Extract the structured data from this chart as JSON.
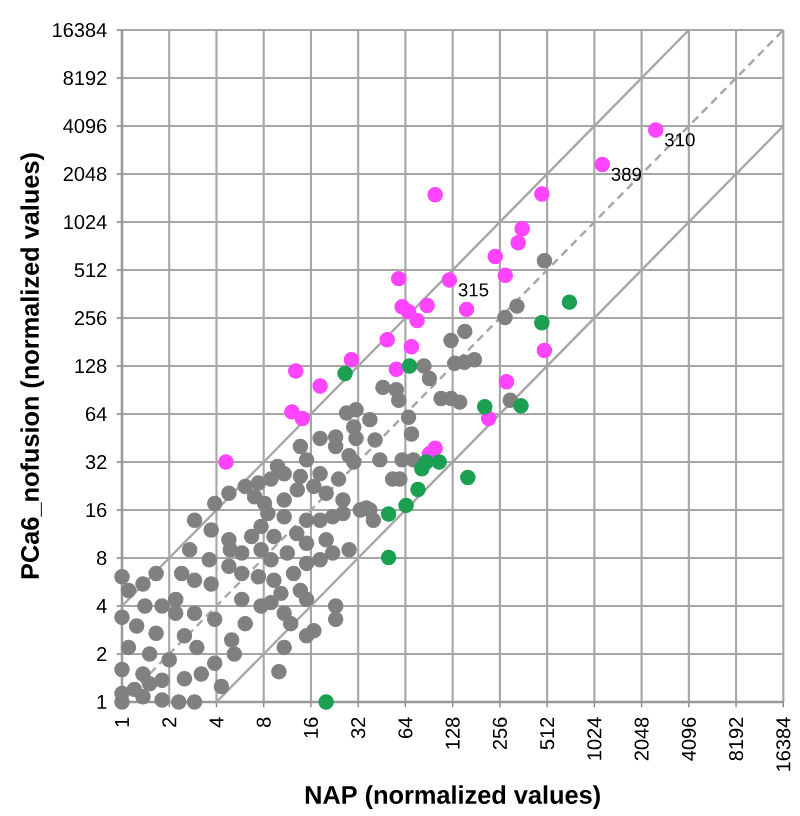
{
  "chart_data": {
    "type": "scatter",
    "xlabel": "NAP (normalized values)",
    "ylabel": "PCa6_nofusion (normalized values)",
    "log": "xy",
    "grid": true,
    "marker": "circle",
    "xlim": [
      1,
      16384
    ],
    "ylim": [
      1,
      16384
    ],
    "xticks": [
      1,
      2,
      4,
      8,
      16,
      32,
      64,
      128,
      256,
      512,
      1024,
      2048,
      4096,
      8192,
      16384
    ],
    "yticks": [
      1,
      2,
      4,
      8,
      16,
      32,
      64,
      128,
      256,
      512,
      1024,
      2048,
      4096,
      8192,
      16384
    ],
    "annotations": [
      {
        "text": "310",
        "x": 2520,
        "y": 3870
      },
      {
        "text": "389",
        "x": 1150,
        "y": 2350
      },
      {
        "text": "315",
        "x": 122,
        "y": 443
      }
    ],
    "series": [
      {
        "type": "line",
        "color": "#a6a6a6",
        "marker": "none",
        "line_style": "solid",
        "x": [
          1,
          4096
        ],
        "values": [
          4,
          16384
        ]
      },
      {
        "type": "line",
        "color": "#a6a6a6",
        "marker": "none",
        "line_style": "dashed",
        "x": [
          1,
          16384
        ],
        "values": [
          1,
          16384
        ]
      },
      {
        "type": "line",
        "color": "#a6a6a6",
        "marker": "none",
        "line_style": "solid",
        "x": [
          4,
          16384
        ],
        "values": [
          1,
          4096
        ]
      },
      {
        "color": "#808080",
        "x": [
          492,
          329,
          276,
          153,
          125,
          176,
          152,
          132,
          84,
          91,
          46,
          56,
          108,
          125,
          298,
          142,
          31,
          27,
          30,
          13.7,
          18.3,
          23,
          31,
          41,
          70,
          61,
          72,
          30,
          53,
          59,
          9.8,
          10.8,
          8.9,
          7.4,
          6.1,
          13.7,
          16.7,
          13.1,
          10.8,
          25.6,
          33,
          38,
          22,
          18.3,
          15,
          13,
          8.5,
          7.7,
          6.7,
          2.9,
          3.7,
          4.8,
          4.9,
          2.7,
          2.4,
          2.9,
          3.7,
          5.8,
          7.4,
          9.3,
          12.4,
          15,
          18.3,
          22,
          28,
          13.7,
          10.3,
          8.9,
          15,
          23,
          23,
          16.7,
          15,
          11.9,
          10.8,
          10,
          6.1,
          5.0,
          5.2,
          3.9,
          3.2,
          4.3,
          2.3,
          2.9,
          1.0,
          1.1,
          1.36,
          1.65,
          1.8,
          2.2,
          1.0,
          1.24,
          1.65,
          1.1,
          1.5,
          2.0,
          1.0,
          1.36,
          1.8,
          1.0,
          1.36,
          1.8,
          1,
          7.0,
          8.1,
          9.3,
          11.3,
          15,
          7.7,
          8.9,
          5.8,
          4.8,
          3.6,
          2.2,
          2.9,
          3.9,
          7.7,
          5.8,
          10.8,
          20,
          25.6,
          36,
          20,
          18.3,
          15,
          24,
          40,
          28,
          44,
          58,
          67,
          38,
          23,
          10.8,
          4.8,
          3.9,
          1.2,
          1.5,
          2.5,
          3.0,
          2.5,
          1.4
        ],
        "values": [
          585,
          304,
          258,
          211,
          185,
          140,
          135,
          133,
          128,
          107,
          94,
          91,
          80,
          80,
          78,
          76,
          68,
          65,
          53,
          40,
          45,
          46,
          45,
          44,
          48,
          33,
          33,
          32,
          25,
          25,
          30,
          27,
          25,
          23.6,
          22.5,
          26,
          22.5,
          21.4,
          18.5,
          18.5,
          16,
          16,
          14.5,
          13.8,
          13.8,
          11.4,
          15.2,
          12.6,
          10.9,
          13.8,
          12,
          10.4,
          9,
          9,
          6.4,
          5.8,
          5.5,
          6.4,
          6.1,
          5.8,
          6.4,
          7.4,
          7.8,
          8.6,
          9,
          5.0,
          4.8,
          4.2,
          4.4,
          4.0,
          3.3,
          2.8,
          2.6,
          3.1,
          2.2,
          1.55,
          3.1,
          2.45,
          2.0,
          1.75,
          1.5,
          1.25,
          1,
          1,
          6.1,
          5.0,
          5.5,
          6.4,
          4.0,
          3.6,
          3.4,
          3.0,
          2.7,
          2.2,
          2.0,
          1.84,
          1.6,
          1.5,
          1.37,
          1.13,
          1.08,
          1.03,
          1,
          19.4,
          17.6,
          10.9,
          8.6,
          9.9,
          9.0,
          7.8,
          8.6,
          7.1,
          7.8,
          4.4,
          3.6,
          3.3,
          4.0,
          4.4,
          3.6,
          10.4,
          15.2,
          16.5,
          20.4,
          27,
          33,
          25,
          13.8,
          35,
          33,
          78,
          61,
          59,
          40,
          14.5,
          20.4,
          17.6,
          1.2,
          1.3,
          1.4,
          2.2,
          2.6,
          4.0
        ]
      },
      {
        "color": "#ff44ff",
        "x": [
          2520,
          1150,
          99,
          474,
          355,
          335,
          239,
          277,
          58,
          122,
          61,
          67,
          76,
          88,
          157,
          49,
          70,
          492,
          29,
          12.8,
          56,
          18.3,
          282,
          12.1,
          14.1,
          4.6,
          99,
          91,
          217
        ],
        "values": [
          3870,
          2350,
          1520,
          1535,
          930,
          760,
          622,
          474,
          452,
          443,
          301,
          280,
          247,
          307,
          290,
          187,
          169,
          160,
          140,
          119,
          122,
          96,
          102,
          66,
          60,
          32,
          39,
          36,
          60
        ]
      },
      {
        "color": "#1aa050",
        "x": [
          26.4,
          68,
          474,
          710,
          205,
          81.5,
          87,
          105,
          160,
          77,
          64.6,
          50,
          50,
          20,
          349
        ],
        "values": [
          115,
          128,
          239,
          322,
          71,
          29,
          32,
          32,
          25.6,
          21.5,
          17.1,
          15.1,
          8.05,
          1,
          72
        ]
      }
    ]
  }
}
